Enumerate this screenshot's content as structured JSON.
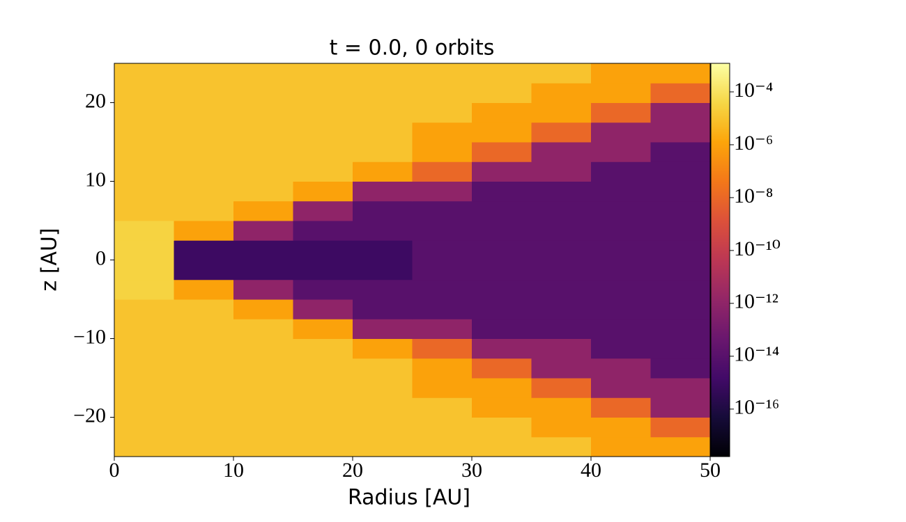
{
  "chart_data": {
    "type": "heatmap",
    "title": "t = 0.0, 0 orbits",
    "x_label": "Radius [AU]",
    "y_label": "z [AU]",
    "xbins": [
      0,
      5,
      10,
      15,
      20,
      25,
      30,
      35,
      40,
      45,
      50
    ],
    "ybins": [
      -25,
      -22.5,
      -20,
      -17.5,
      -15,
      -12.5,
      -10,
      -7.5,
      -5,
      -2.5,
      0,
      2.5,
      5,
      7.5,
      10,
      12.5,
      15,
      17.5,
      20,
      22.5,
      25
    ],
    "values": [
      [
        1e-05,
        1e-05,
        1e-05,
        1e-05,
        1e-05,
        1e-05,
        1e-05,
        1e-05,
        1e-06,
        1e-06
      ],
      [
        1e-05,
        1e-05,
        1e-05,
        1e-05,
        1e-05,
        1e-05,
        1e-05,
        1e-06,
        1e-06,
        1e-08
      ],
      [
        1e-05,
        1e-05,
        1e-05,
        1e-05,
        1e-05,
        1e-05,
        1e-06,
        1e-06,
        1e-08,
        1e-12
      ],
      [
        1e-05,
        1e-05,
        1e-05,
        1e-05,
        1e-05,
        1e-06,
        1e-06,
        1e-08,
        1e-12,
        1e-12
      ],
      [
        1e-05,
        1e-05,
        1e-05,
        1e-05,
        1e-05,
        1e-06,
        1e-08,
        1e-12,
        1e-12,
        1e-14
      ],
      [
        1e-05,
        1e-05,
        1e-05,
        1e-05,
        1e-06,
        1e-08,
        1e-12,
        1e-12,
        1e-14,
        1e-14
      ],
      [
        1e-05,
        1e-05,
        1e-05,
        1e-06,
        1e-12,
        1e-12,
        1e-14,
        1e-14,
        1e-14,
        1e-14
      ],
      [
        1e-05,
        1e-05,
        1e-06,
        1e-12,
        1e-14,
        1e-14,
        1e-14,
        1e-14,
        1e-14,
        1e-14
      ],
      [
        3e-05,
        1e-06,
        1e-12,
        1e-14,
        1e-14,
        1e-14,
        1e-14,
        1e-14,
        1e-14,
        1e-14
      ],
      [
        3e-05,
        1e-15,
        1e-15,
        1e-15,
        1e-15,
        1e-14,
        1e-14,
        1e-14,
        1e-14,
        1e-14
      ],
      [
        3e-05,
        1e-15,
        1e-15,
        1e-15,
        1e-15,
        1e-14,
        1e-14,
        1e-14,
        1e-14,
        1e-14
      ],
      [
        3e-05,
        1e-06,
        1e-12,
        1e-14,
        1e-14,
        1e-14,
        1e-14,
        1e-14,
        1e-14,
        1e-14
      ],
      [
        1e-05,
        1e-05,
        1e-06,
        1e-12,
        1e-14,
        1e-14,
        1e-14,
        1e-14,
        1e-14,
        1e-14
      ],
      [
        1e-05,
        1e-05,
        1e-05,
        1e-06,
        1e-12,
        1e-12,
        1e-14,
        1e-14,
        1e-14,
        1e-14
      ],
      [
        1e-05,
        1e-05,
        1e-05,
        1e-05,
        1e-06,
        1e-08,
        1e-12,
        1e-12,
        1e-14,
        1e-14
      ],
      [
        1e-05,
        1e-05,
        1e-05,
        1e-05,
        1e-05,
        1e-06,
        1e-08,
        1e-12,
        1e-12,
        1e-14
      ],
      [
        1e-05,
        1e-05,
        1e-05,
        1e-05,
        1e-05,
        1e-06,
        1e-06,
        1e-08,
        1e-12,
        1e-12
      ],
      [
        1e-05,
        1e-05,
        1e-05,
        1e-05,
        1e-05,
        1e-05,
        1e-06,
        1e-06,
        1e-08,
        1e-12
      ],
      [
        1e-05,
        1e-05,
        1e-05,
        1e-05,
        1e-05,
        1e-05,
        1e-05,
        1e-06,
        1e-06,
        1e-08
      ],
      [
        1e-05,
        1e-05,
        1e-05,
        1e-05,
        1e-05,
        1e-05,
        1e-05,
        1e-05,
        1e-06,
        1e-06
      ]
    ],
    "xlim": [
      0,
      50
    ],
    "xticks": [
      0,
      10,
      20,
      30,
      40,
      50
    ],
    "ylim": [
      -25,
      25
    ],
    "yticks": [
      {
        "value": -20,
        "label": "−20"
      },
      {
        "value": -10,
        "label": "−10"
      },
      0,
      10,
      20
    ],
    "colormap": "inferno",
    "color_log": true,
    "clim": [
      1.6e-18,
      0.0012
    ],
    "cticks": [
      {
        "value": 1e-16,
        "label": "10⁻¹⁶"
      },
      {
        "value": 1e-14,
        "label": "10⁻¹⁴"
      },
      {
        "value": 1e-12,
        "label": "10⁻¹²"
      },
      {
        "value": 1e-10,
        "label": "10⁻¹⁰"
      },
      {
        "value": 1e-08,
        "label": "10⁻⁸"
      },
      {
        "value": 1e-06,
        "label": "10⁻⁶"
      },
      {
        "value": 0.0001,
        "label": "10⁻⁴"
      }
    ]
  }
}
